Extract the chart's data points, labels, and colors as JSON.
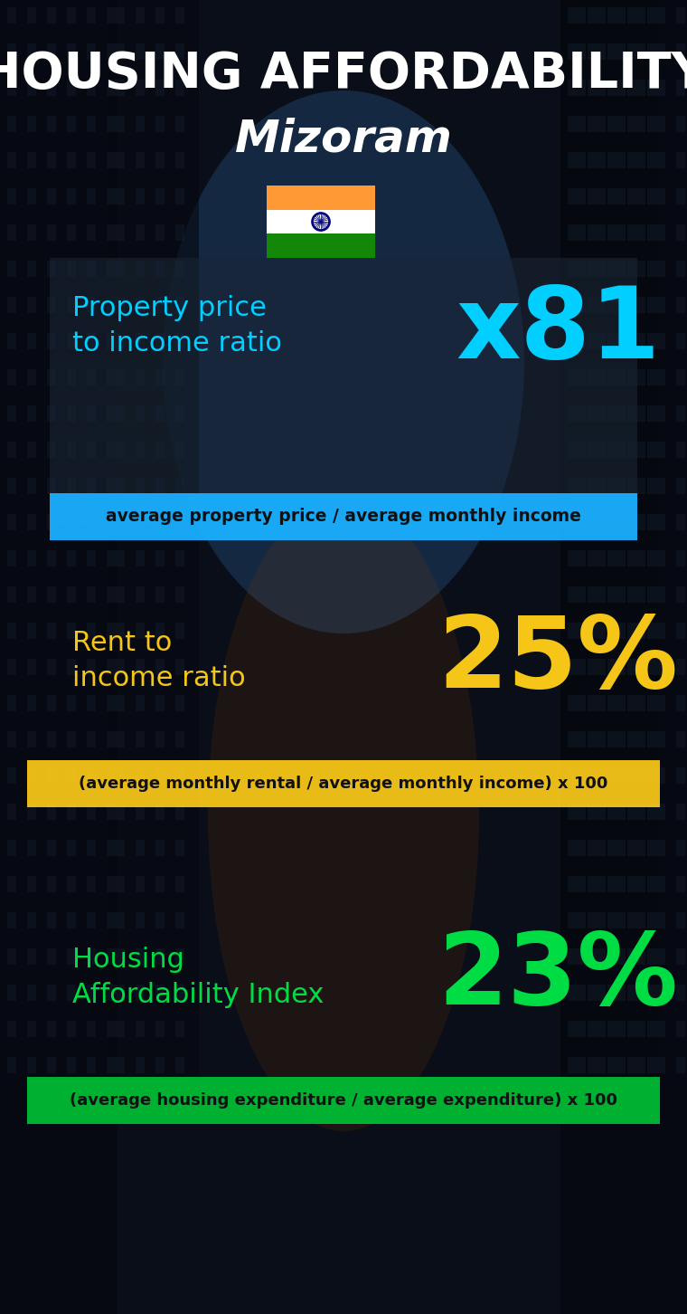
{
  "title_line1": "HOUSING AFFORDABILITY",
  "title_line2": "Mizoram",
  "section1_label": "Property price\nto income ratio",
  "section1_value": "x81",
  "section1_formula": "average property price / average monthly income",
  "section1_label_color": "#00cfff",
  "section1_value_color": "#00cfff",
  "section1_bar_color": "#1ab0ff",
  "section2_label": "Rent to\nincome ratio",
  "section2_value": "25%",
  "section2_formula": "(average monthly rental / average monthly income) x 100",
  "section2_label_color": "#f5c518",
  "section2_value_color": "#f5c518",
  "section2_bar_color": "#f5c518",
  "section3_label": "Housing\nAffordability Index",
  "section3_value": "23%",
  "section3_formula": "(average housing expenditure / average expenditure) x 100",
  "section3_label_color": "#00dd44",
  "section3_value_color": "#00dd44",
  "section3_bar_color": "#00bb33",
  "bg_color": "#0a0e18",
  "title_color": "#ffffff",
  "formula_text_color": "#111111",
  "flag_saffron": "#FF9933",
  "flag_white": "#FFFFFF",
  "flag_green": "#138808",
  "flag_navy": "#000080"
}
